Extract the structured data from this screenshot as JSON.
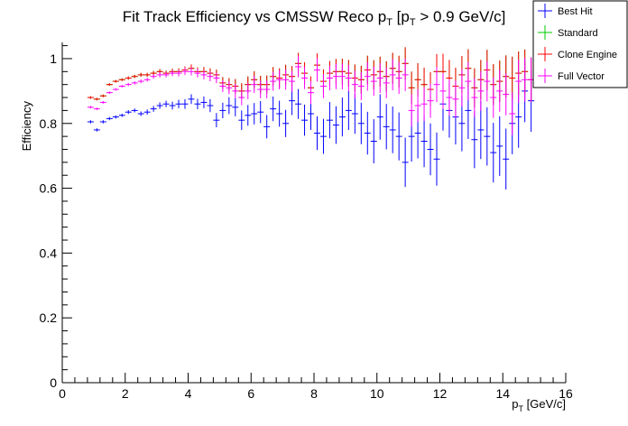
{
  "chart_data": {
    "type": "scatter",
    "title": "Fit Track Efficiency vs CMSSW Reco p",
    "title_sub": "T",
    "title_rest": " [p",
    "title_sub2": "T",
    "title_end": " > 0.9 GeV/c]",
    "xlabel": "p",
    "xlabel_sub": "T",
    "xlabel_rest": " [GeV/c]",
    "ylabel": "Efficiency",
    "xlim": [
      0,
      16
    ],
    "ylim": [
      0,
      1.05
    ],
    "x_ticks": [
      "0",
      "2",
      "4",
      "6",
      "8",
      "10",
      "12",
      "14",
      "16"
    ],
    "y_ticks": [
      "0",
      "0.2",
      "0.4",
      "0.6",
      "0.8",
      "1"
    ],
    "legend_position": "top-right",
    "bin_half_width": 0.1,
    "x": [
      0.9,
      1.1,
      1.3,
      1.5,
      1.7,
      1.9,
      2.1,
      2.3,
      2.5,
      2.7,
      2.9,
      3.1,
      3.3,
      3.5,
      3.7,
      3.9,
      4.1,
      4.3,
      4.5,
      4.7,
      4.9,
      5.1,
      5.3,
      5.5,
      5.7,
      5.9,
      6.1,
      6.3,
      6.5,
      6.7,
      6.9,
      7.1,
      7.3,
      7.5,
      7.7,
      7.9,
      8.1,
      8.3,
      8.5,
      8.7,
      8.9,
      9.1,
      9.3,
      9.5,
      9.7,
      9.9,
      10.1,
      10.3,
      10.5,
      10.7,
      10.9,
      11.1,
      11.3,
      11.5,
      11.7,
      11.9,
      12.1,
      12.3,
      12.5,
      12.7,
      12.9,
      13.1,
      13.3,
      13.5,
      13.7,
      13.9,
      14.1,
      14.3,
      14.5,
      14.7,
      14.9
    ],
    "series": [
      {
        "name": "Best Hit",
        "color": "#0000ff",
        "y": [
          0.805,
          0.78,
          0.805,
          0.815,
          0.82,
          0.825,
          0.835,
          0.84,
          0.83,
          0.835,
          0.845,
          0.855,
          0.86,
          0.855,
          0.86,
          0.86,
          0.875,
          0.86,
          0.865,
          0.855,
          0.81,
          0.84,
          0.855,
          0.85,
          0.81,
          0.825,
          0.83,
          0.835,
          0.79,
          0.845,
          0.83,
          0.8,
          0.87,
          0.86,
          0.81,
          0.83,
          0.77,
          0.76,
          0.81,
          0.795,
          0.82,
          0.84,
          0.83,
          0.8,
          0.77,
          0.745,
          0.82,
          0.79,
          0.78,
          0.76,
          0.68,
          0.76,
          0.77,
          0.745,
          0.72,
          0.69,
          0.86,
          0.84,
          0.82,
          0.8,
          0.84,
          0.75,
          0.78,
          0.76,
          0.71,
          0.73,
          0.69,
          0.8,
          0.82,
          0.9,
          0.87
        ],
        "err": [
          0.005,
          0.005,
          0.005,
          0.005,
          0.005,
          0.005,
          0.006,
          0.006,
          0.007,
          0.008,
          0.009,
          0.01,
          0.01,
          0.012,
          0.013,
          0.015,
          0.015,
          0.016,
          0.018,
          0.02,
          0.022,
          0.024,
          0.026,
          0.028,
          0.03,
          0.032,
          0.033,
          0.034,
          0.036,
          0.038,
          0.04,
          0.042,
          0.044,
          0.046,
          0.048,
          0.05,
          0.052,
          0.054,
          0.056,
          0.058,
          0.06,
          0.06,
          0.062,
          0.064,
          0.066,
          0.068,
          0.07,
          0.07,
          0.072,
          0.074,
          0.076,
          0.078,
          0.078,
          0.08,
          0.08,
          0.082,
          0.082,
          0.084,
          0.085,
          0.086,
          0.088,
          0.088,
          0.09,
          0.09,
          0.092,
          0.092,
          0.094,
          0.095,
          0.095,
          0.096,
          0.096
        ]
      },
      {
        "name": "Standard",
        "color": "#00cc00",
        "y": [
          0.88,
          0.875,
          0.885,
          0.92,
          0.93,
          0.935,
          0.94,
          0.945,
          0.95,
          0.95,
          0.955,
          0.96,
          0.955,
          0.96,
          0.96,
          0.965,
          0.97,
          0.96,
          0.96,
          0.955,
          0.95,
          0.925,
          0.92,
          0.915,
          0.9,
          0.92,
          0.935,
          0.92,
          0.92,
          0.945,
          0.94,
          0.95,
          0.945,
          0.985,
          0.955,
          0.91,
          0.98,
          0.93,
          0.955,
          0.96,
          0.96,
          0.955,
          0.94,
          0.935,
          0.965,
          0.95,
          0.96,
          0.945,
          0.97,
          0.96,
          0.985,
          0.91,
          0.935,
          0.92,
          0.905,
          0.96,
          0.96,
          0.94,
          0.915,
          0.95,
          0.97,
          0.91,
          0.935,
          0.965,
          0.92,
          0.93,
          0.945,
          0.94,
          0.955,
          0.96,
          0.935
        ],
        "err": [
          0.004,
          0.004,
          0.004,
          0.004,
          0.004,
          0.004,
          0.005,
          0.005,
          0.006,
          0.006,
          0.007,
          0.008,
          0.008,
          0.009,
          0.01,
          0.011,
          0.012,
          0.013,
          0.014,
          0.015,
          0.016,
          0.018,
          0.02,
          0.022,
          0.024,
          0.025,
          0.026,
          0.027,
          0.028,
          0.029,
          0.03,
          0.031,
          0.032,
          0.033,
          0.034,
          0.035,
          0.036,
          0.037,
          0.038,
          0.039,
          0.04,
          0.041,
          0.042,
          0.043,
          0.044,
          0.045,
          0.046,
          0.047,
          0.048,
          0.049,
          0.05,
          0.05,
          0.051,
          0.052,
          0.053,
          0.054,
          0.055,
          0.056,
          0.057,
          0.058,
          0.059,
          0.06,
          0.061,
          0.062,
          0.063,
          0.064,
          0.065,
          0.066,
          0.067,
          0.068,
          0.069
        ]
      },
      {
        "name": "Clone Engine",
        "color": "#ff0000",
        "y": [
          0.88,
          0.875,
          0.885,
          0.92,
          0.93,
          0.935,
          0.94,
          0.945,
          0.95,
          0.95,
          0.955,
          0.96,
          0.955,
          0.96,
          0.96,
          0.965,
          0.97,
          0.96,
          0.96,
          0.955,
          0.95,
          0.925,
          0.92,
          0.915,
          0.9,
          0.92,
          0.935,
          0.92,
          0.92,
          0.945,
          0.94,
          0.95,
          0.945,
          0.985,
          0.955,
          0.91,
          0.98,
          0.93,
          0.955,
          0.96,
          0.96,
          0.955,
          0.94,
          0.935,
          0.965,
          0.95,
          0.96,
          0.945,
          0.97,
          0.96,
          0.985,
          0.91,
          0.935,
          0.92,
          0.905,
          0.96,
          0.96,
          0.94,
          0.915,
          0.95,
          0.97,
          0.91,
          0.935,
          0.965,
          0.92,
          0.93,
          0.945,
          0.94,
          0.955,
          0.96,
          0.935
        ],
        "err": [
          0.004,
          0.004,
          0.004,
          0.004,
          0.004,
          0.004,
          0.005,
          0.005,
          0.006,
          0.006,
          0.007,
          0.008,
          0.008,
          0.009,
          0.01,
          0.011,
          0.012,
          0.013,
          0.014,
          0.015,
          0.016,
          0.018,
          0.02,
          0.022,
          0.024,
          0.025,
          0.026,
          0.027,
          0.028,
          0.029,
          0.03,
          0.031,
          0.032,
          0.033,
          0.034,
          0.035,
          0.036,
          0.037,
          0.038,
          0.039,
          0.04,
          0.041,
          0.042,
          0.043,
          0.044,
          0.045,
          0.046,
          0.047,
          0.048,
          0.049,
          0.05,
          0.05,
          0.051,
          0.052,
          0.053,
          0.054,
          0.055,
          0.056,
          0.057,
          0.058,
          0.059,
          0.06,
          0.061,
          0.062,
          0.063,
          0.064,
          0.065,
          0.066,
          0.067,
          0.068,
          0.069
        ]
      },
      {
        "name": "Full Vector",
        "color": "#ff00ff",
        "y": [
          0.85,
          0.845,
          0.865,
          0.895,
          0.905,
          0.915,
          0.92,
          0.925,
          0.93,
          0.935,
          0.945,
          0.95,
          0.95,
          0.955,
          0.955,
          0.96,
          0.96,
          0.955,
          0.95,
          0.945,
          0.94,
          0.915,
          0.91,
          0.9,
          0.88,
          0.9,
          0.92,
          0.905,
          0.905,
          0.93,
          0.935,
          0.935,
          0.93,
          0.975,
          0.94,
          0.895,
          0.965,
          0.915,
          0.94,
          0.945,
          0.945,
          0.94,
          0.92,
          0.915,
          0.945,
          0.93,
          0.94,
          0.925,
          0.95,
          0.94,
          0.95,
          0.84,
          0.855,
          0.86,
          0.87,
          0.92,
          0.9,
          0.88,
          0.875,
          0.91,
          0.93,
          0.88,
          0.9,
          0.93,
          0.88,
          0.9,
          0.89,
          0.83,
          0.93,
          0.935,
          0.935
        ],
        "err": [
          0.004,
          0.004,
          0.004,
          0.004,
          0.004,
          0.004,
          0.005,
          0.005,
          0.006,
          0.006,
          0.007,
          0.008,
          0.008,
          0.009,
          0.01,
          0.011,
          0.012,
          0.013,
          0.014,
          0.015,
          0.016,
          0.018,
          0.02,
          0.022,
          0.024,
          0.025,
          0.026,
          0.027,
          0.028,
          0.029,
          0.03,
          0.031,
          0.032,
          0.033,
          0.034,
          0.035,
          0.036,
          0.037,
          0.038,
          0.039,
          0.04,
          0.041,
          0.042,
          0.043,
          0.044,
          0.045,
          0.046,
          0.047,
          0.048,
          0.049,
          0.05,
          0.05,
          0.051,
          0.052,
          0.053,
          0.054,
          0.055,
          0.056,
          0.057,
          0.058,
          0.059,
          0.06,
          0.061,
          0.062,
          0.063,
          0.064,
          0.065,
          0.066,
          0.067,
          0.068,
          0.069
        ]
      }
    ]
  }
}
